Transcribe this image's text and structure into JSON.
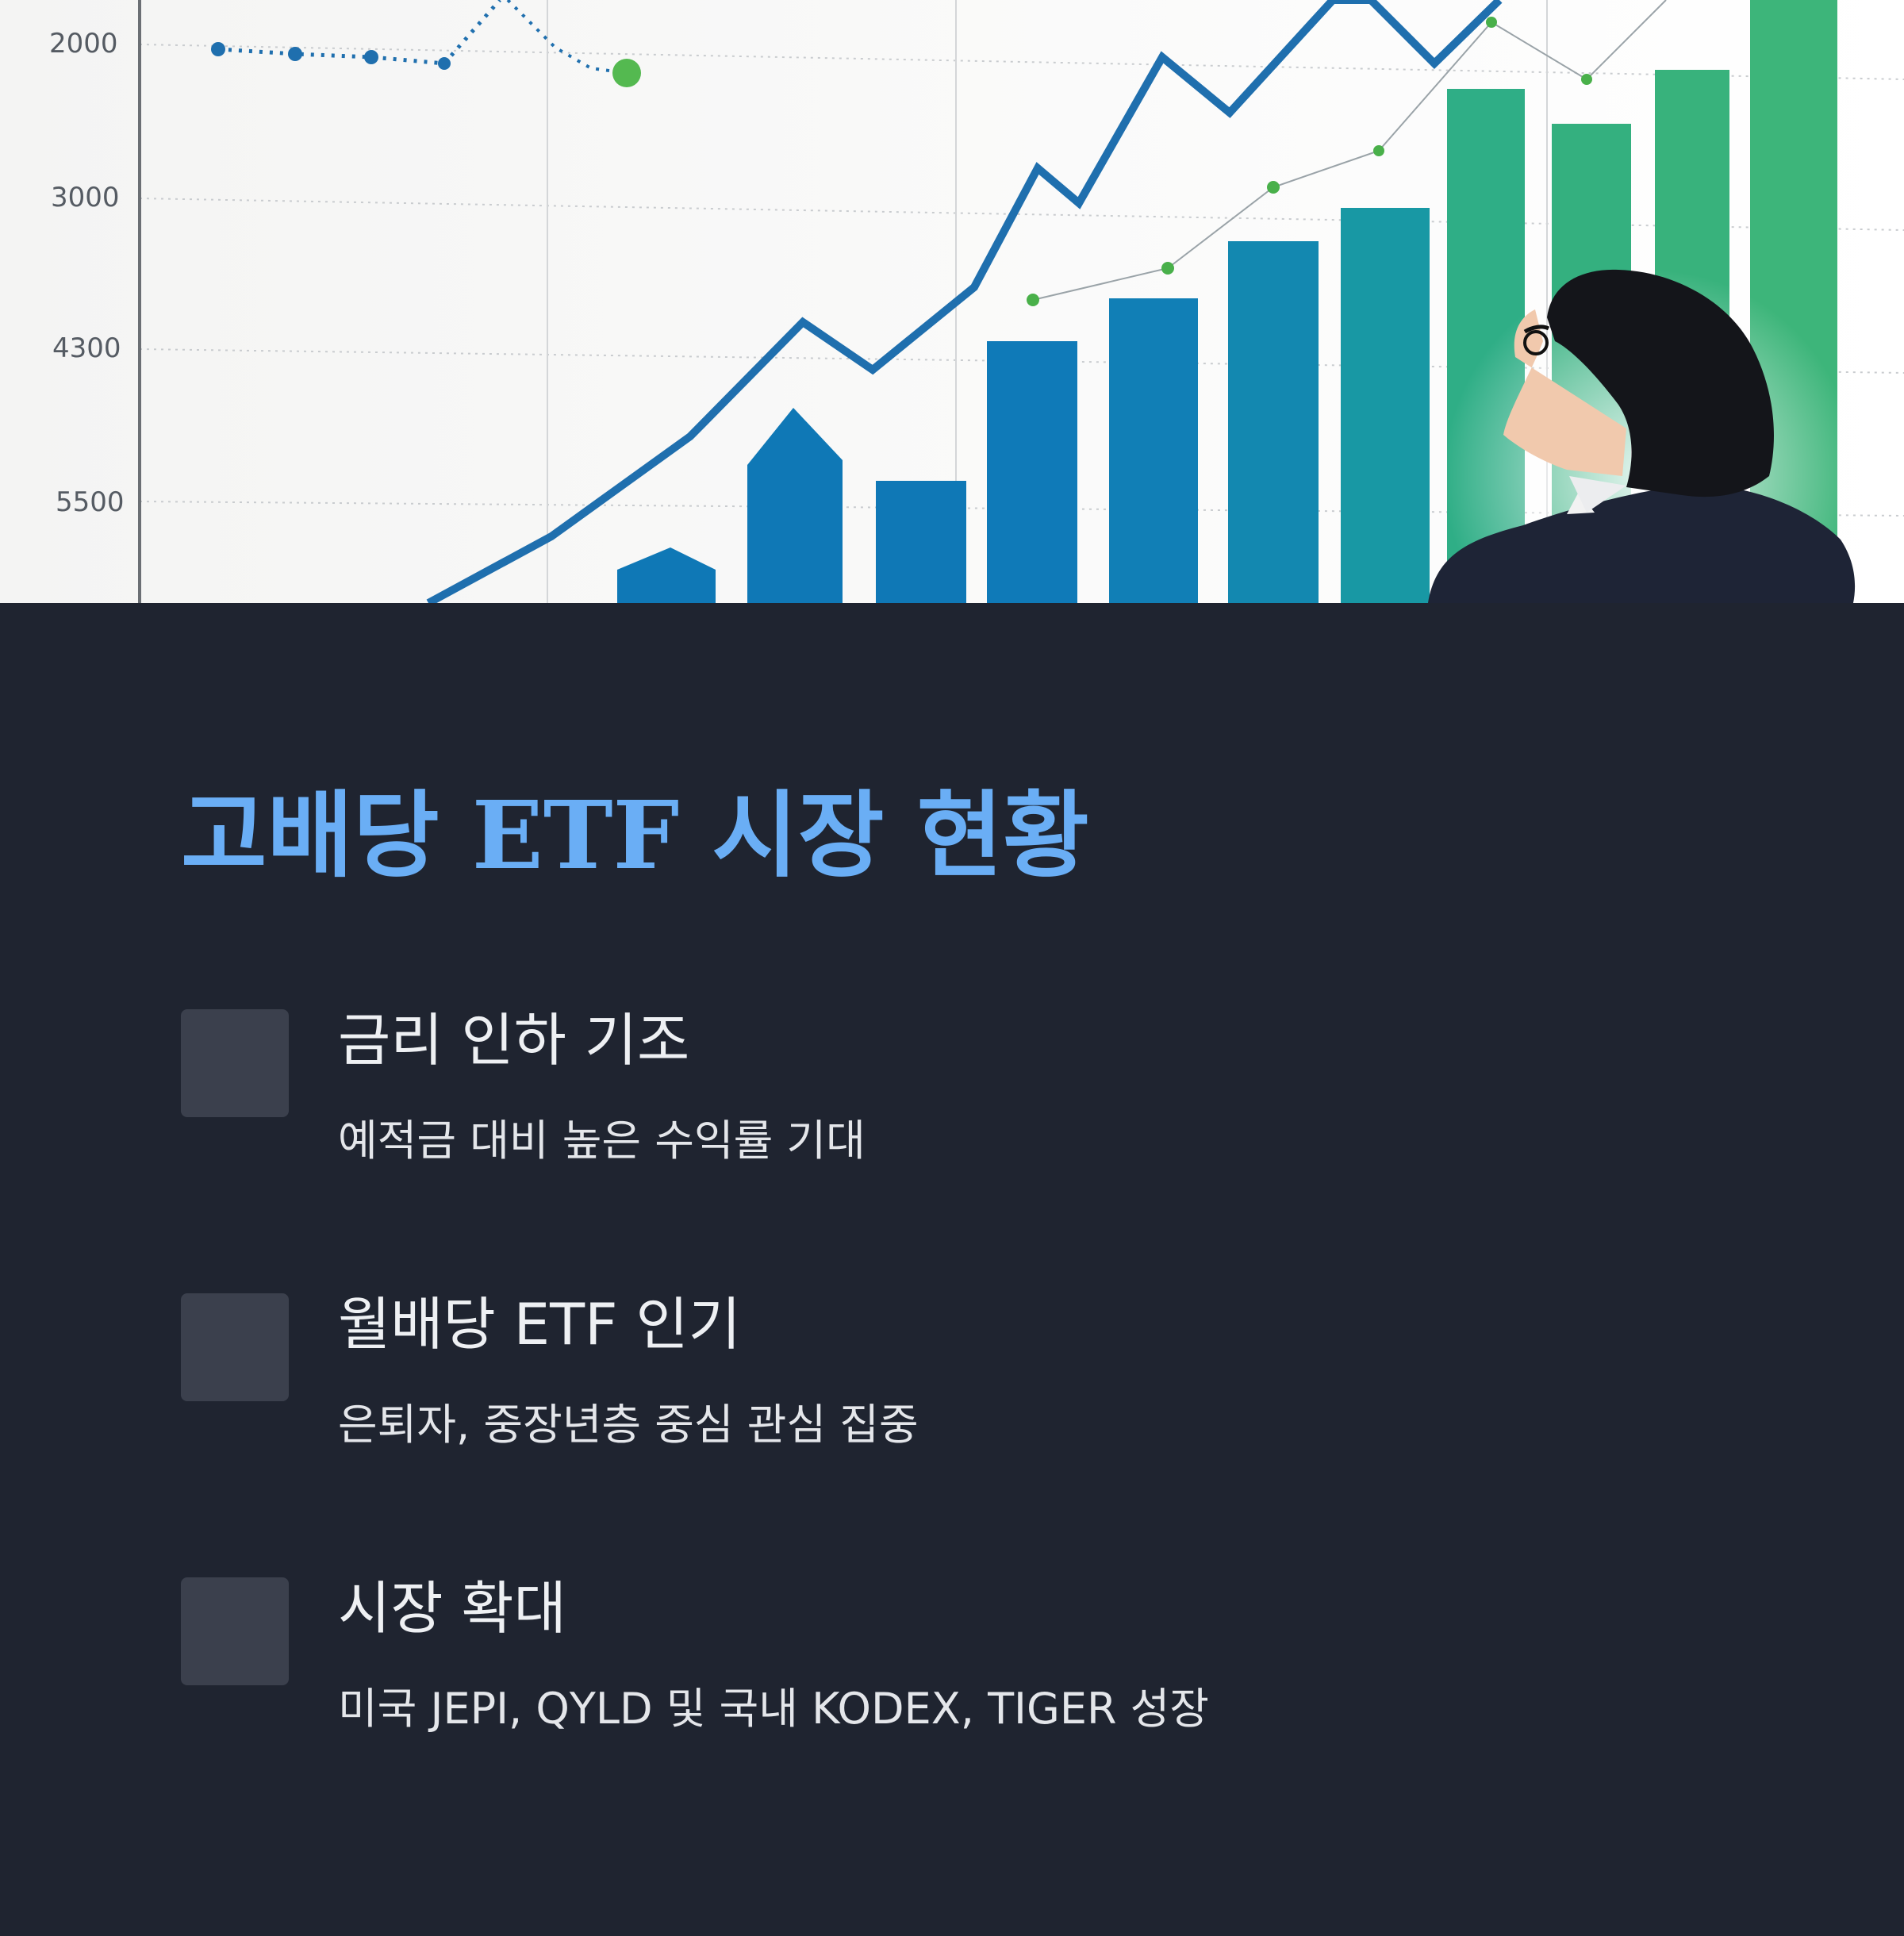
{
  "hero": {
    "y_tick_labels": [
      "2000",
      "3000",
      "4300",
      "5500"
    ],
    "colors": {
      "line": "#1f6fae",
      "bar_blue": "#0f7ab8",
      "bar_teal": "#1a9aa0",
      "bar_green": "#3bb17c",
      "marker_green": "#49b04a"
    }
  },
  "page_title": "고배당 ETF 시장 현황",
  "items": [
    {
      "title": "금리 인하 기조",
      "desc": "예적금 대비 높은 수익률 기대"
    },
    {
      "title": "월배당 ETF 인기",
      "desc": "은퇴자, 중장년층 중심 관심 집중"
    },
    {
      "title": "시장 확대",
      "desc": "미국 JEPI, QYLD 및 국내 KODEX, TIGER 성장"
    }
  ]
}
